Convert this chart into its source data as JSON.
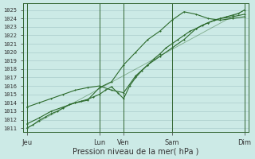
{
  "bg_color": "#cceae6",
  "grid_color": "#aacccc",
  "line_color": "#2d6b2d",
  "marker_color": "#2d6b2d",
  "ylabel_values": [
    1011,
    1012,
    1013,
    1014,
    1015,
    1016,
    1017,
    1018,
    1019,
    1020,
    1021,
    1022,
    1023,
    1024,
    1025
  ],
  "ylim": [
    1010.5,
    1025.8
  ],
  "xlabel": "Pression niveau de la mer( hPa )",
  "xtick_labels": [
    "Jeu",
    "Lun",
    "Ven",
    "Sam",
    "Dim"
  ],
  "xtick_positions": [
    0,
    36,
    48,
    72,
    108
  ],
  "vline_positions": [
    0,
    36,
    48,
    72,
    108
  ],
  "line1_x": [
    0,
    3,
    6,
    9,
    12,
    15,
    18,
    21,
    24,
    27,
    30,
    33,
    36,
    39,
    42,
    45,
    48,
    51,
    54,
    57,
    60,
    63,
    66,
    69,
    72,
    75,
    78,
    81,
    84,
    87,
    90,
    93,
    96,
    99,
    102,
    105,
    108
  ],
  "line1_y": [
    1011.0,
    1011.4,
    1011.9,
    1012.3,
    1012.7,
    1013.0,
    1013.4,
    1013.8,
    1014.0,
    1014.2,
    1014.4,
    1014.7,
    1015.0,
    1015.5,
    1015.9,
    1015.2,
    1014.5,
    1016.0,
    1017.0,
    1017.8,
    1018.5,
    1019.2,
    1019.8,
    1020.5,
    1021.0,
    1021.5,
    1022.0,
    1022.5,
    1022.8,
    1023.2,
    1023.5,
    1023.8,
    1024.0,
    1024.2,
    1024.4,
    1024.6,
    1025.0
  ],
  "line2_x": [
    0,
    6,
    12,
    18,
    24,
    30,
    36,
    42,
    48,
    54,
    60,
    66,
    72,
    78,
    84,
    90,
    96,
    102,
    108
  ],
  "line2_y": [
    1013.5,
    1014.0,
    1014.5,
    1015.0,
    1015.5,
    1015.8,
    1016.0,
    1015.5,
    1015.2,
    1017.2,
    1018.5,
    1019.5,
    1020.5,
    1021.5,
    1022.8,
    1023.5,
    1024.0,
    1024.2,
    1024.5
  ],
  "line3_x": [
    0,
    6,
    12,
    18,
    24,
    30,
    36,
    42,
    48,
    54,
    60,
    66,
    72,
    78,
    84,
    90,
    96,
    102,
    108
  ],
  "line3_y": [
    1011.5,
    1012.2,
    1013.0,
    1013.5,
    1014.0,
    1014.3,
    1015.8,
    1016.5,
    1018.5,
    1020.0,
    1021.5,
    1022.5,
    1023.8,
    1024.8,
    1024.5,
    1024.0,
    1023.8,
    1024.0,
    1024.2
  ],
  "line4_x": [
    0,
    108
  ],
  "line4_y": [
    1011.0,
    1025.0
  ]
}
